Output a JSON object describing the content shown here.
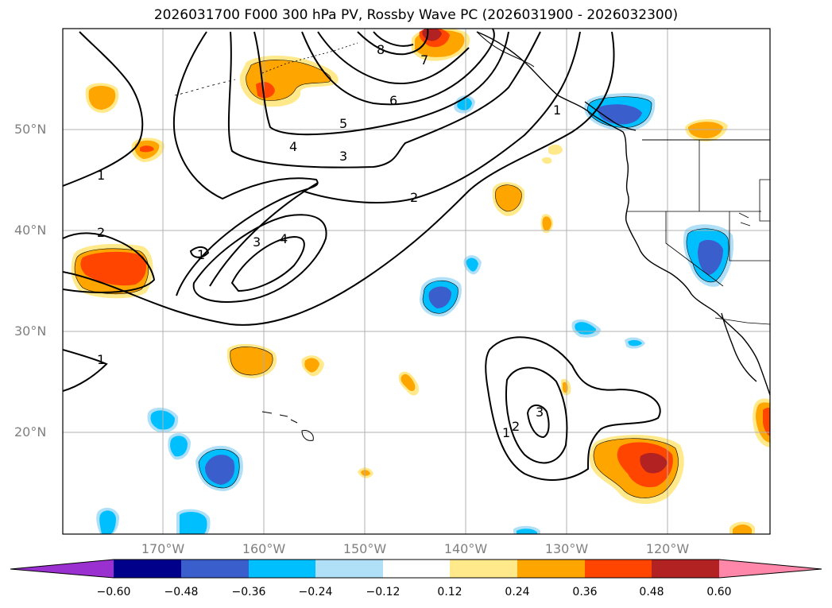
{
  "title": "2026031700 F000 300 hPa PV, Rossby Wave PC (2026031900 - 2026032300)",
  "lat_labels": [
    "50°N",
    "40°N",
    "30°N",
    "20°N"
  ],
  "lon_labels": [
    "170°W",
    "160°W",
    "150°W",
    "140°W",
    "130°W",
    "120°W"
  ],
  "contour_labels": [
    "8",
    "7",
    "6",
    "5",
    "4",
    "3",
    "2",
    "1",
    "1",
    "2",
    "1",
    "3",
    "4",
    "1",
    "3",
    "2",
    "1"
  ],
  "colorbar": {
    "ticks": [
      "−0.60",
      "−0.48",
      "−0.36",
      "−0.24",
      "−0.12",
      "0.12",
      "0.24",
      "0.36",
      "0.48",
      "0.60"
    ],
    "colors": [
      "#9b30d0",
      "#00008b",
      "#3a5fcd",
      "#00bfff",
      "#b0e0f8",
      "#ffffff",
      "#ffe98a",
      "#ffa500",
      "#ff4500",
      "#b22222",
      "#ff88aa"
    ]
  },
  "palette": {
    "pos1": "#ffe98a",
    "pos2": "#ffa500",
    "pos3": "#ff4500",
    "pos4": "#b22222",
    "neg1": "#b0e0f8",
    "neg2": "#00bfff",
    "neg3": "#3a5fcd"
  }
}
